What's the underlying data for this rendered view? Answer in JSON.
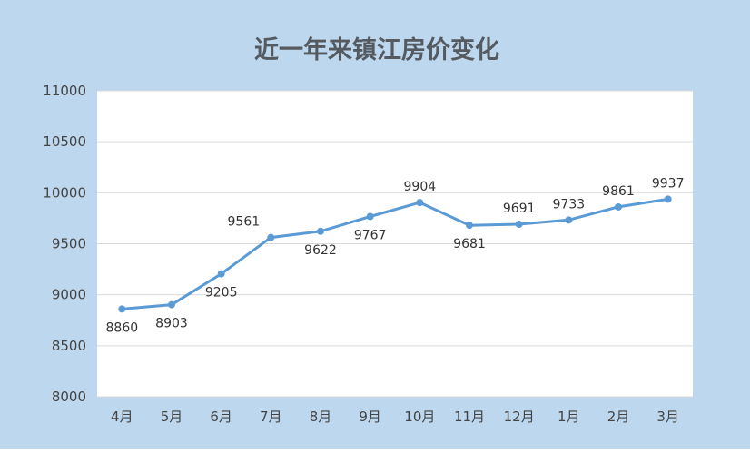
{
  "chart_data": {
    "type": "line",
    "title": "近一年来镇江房价变化",
    "xlabel": "",
    "ylabel": "",
    "categories": [
      "4月",
      "5月",
      "6月",
      "7月",
      "8月",
      "9月",
      "10月",
      "11月",
      "12月",
      "1月",
      "2月",
      "3月"
    ],
    "values": [
      8860,
      8903,
      9205,
      9561,
      9622,
      9767,
      9904,
      9681,
      9691,
      9733,
      9861,
      9937
    ],
    "ylim": [
      8000,
      11000
    ],
    "yticks": [
      8000,
      8500,
      9000,
      9500,
      10000,
      10500,
      11000
    ],
    "grid": true,
    "legend": "none",
    "colors": {
      "background": "#bdd7ee",
      "plot_area": "#ffffff",
      "line": "#5b9bd5",
      "gridline": "#d9d9d9"
    }
  }
}
